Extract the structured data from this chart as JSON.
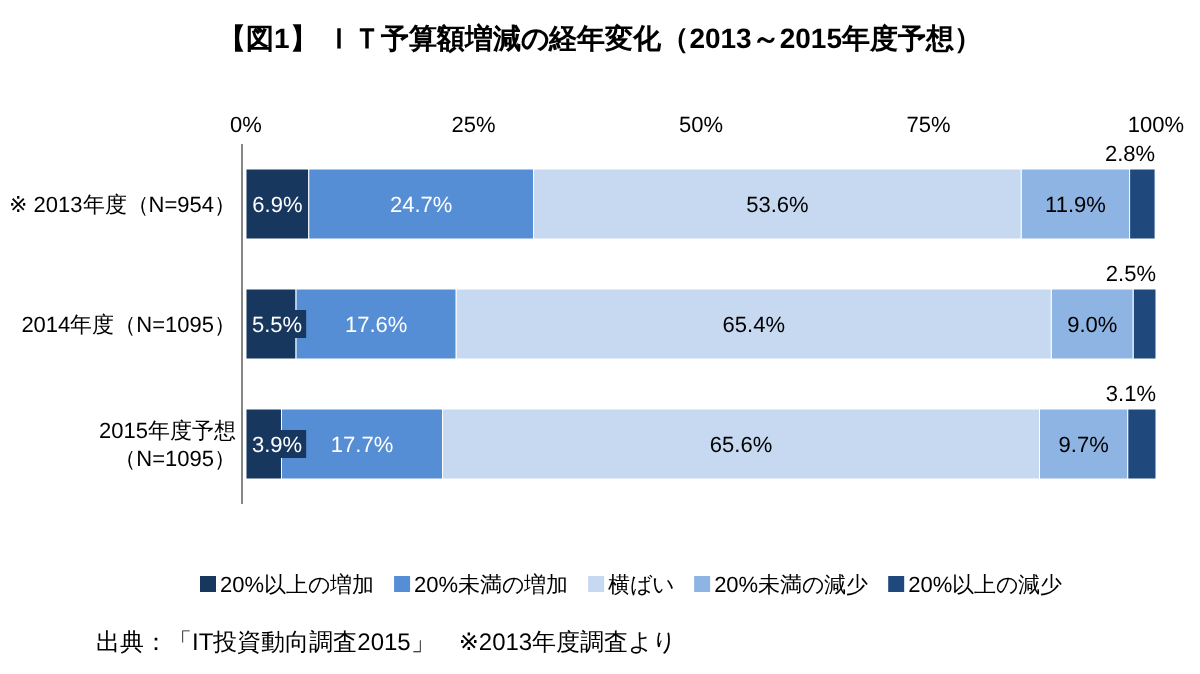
{
  "chart_data": {
    "type": "bar",
    "orientation": "horizontal",
    "stacked": true,
    "title": "【図1】 ＩＴ予算額増減の経年変化（2013～2015年度予想）",
    "categories": [
      "※ 2013年度（N=954）",
      "2014年度（N=1095）",
      "2015年度予想（N=1095）"
    ],
    "series": [
      {
        "name": "20%以上の増加",
        "color": "#17375e",
        "values": [
          6.9,
          5.5,
          3.9
        ],
        "value_labels": [
          "6.9%",
          "5.5%",
          "3.9%"
        ]
      },
      {
        "name": "20%未満の増加",
        "color": "#558ed5",
        "values": [
          24.7,
          17.6,
          17.7
        ],
        "value_labels": [
          "24.7%",
          "17.6%",
          "17.7%"
        ]
      },
      {
        "name": "横ばい",
        "color": "#c6d9f1",
        "values": [
          53.6,
          65.4,
          65.6
        ],
        "value_labels": [
          "53.6%",
          "65.4%",
          "65.6%"
        ]
      },
      {
        "name": "20%未満の減少",
        "color": "#8eb4e3",
        "values": [
          11.9,
          9.0,
          9.7
        ],
        "value_labels": [
          "11.9%",
          "9.0%",
          "9.7%"
        ]
      },
      {
        "name": "20%以上の減少",
        "color": "#1f497d",
        "values": [
          2.8,
          2.5,
          3.1
        ],
        "value_labels": [
          "2.8%",
          "2.5%",
          "3.1%"
        ]
      }
    ],
    "xlim": [
      0,
      100
    ],
    "xticks": [
      {
        "value": 0,
        "label": "0%"
      },
      {
        "value": 25,
        "label": "25%"
      },
      {
        "value": 50,
        "label": "50%"
      },
      {
        "value": 75,
        "label": "75%"
      },
      {
        "value": 100,
        "label": "100%"
      }
    ],
    "legend": "bottom",
    "annotations": [
      "出典：「IT投資動向調査2015」　※2013年度調査より"
    ]
  }
}
